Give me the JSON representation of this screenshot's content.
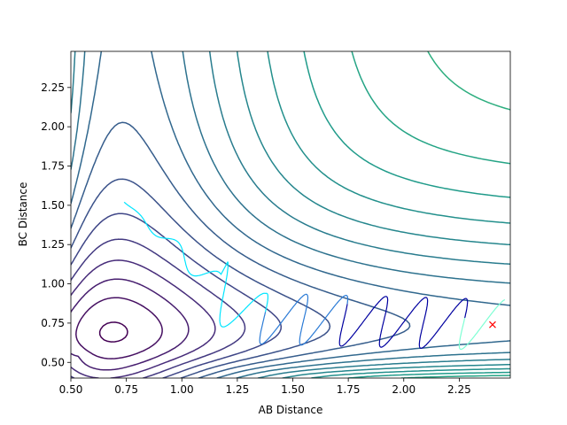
{
  "chart_data": {
    "type": "contour",
    "title": "",
    "xlabel": "AB Distance",
    "ylabel": "BC Distance",
    "xlim": [
      0.5,
      2.48
    ],
    "ylim": [
      0.4,
      2.48
    ],
    "xticks": [
      "0.50",
      "0.75",
      "1.00",
      "1.25",
      "1.50",
      "1.75",
      "2.00",
      "2.25"
    ],
    "yticks": [
      "0.50",
      "0.75",
      "1.00",
      "1.25",
      "1.50",
      "1.75",
      "2.00",
      "2.25"
    ],
    "grid": false,
    "legend": "none",
    "colormap": "viridis",
    "contour_levels": 25,
    "trajectory": {
      "start": [
        0.74,
        1.52
      ],
      "end": [
        2.4,
        0.74
      ],
      "colors": [
        "#00e5ff",
        "#2b7bd6",
        "#0000a0",
        "#7fffd4"
      ]
    },
    "end_marker": {
      "x": 2.4,
      "y": 0.74,
      "symbol": "x",
      "color": "#ff0000"
    }
  }
}
